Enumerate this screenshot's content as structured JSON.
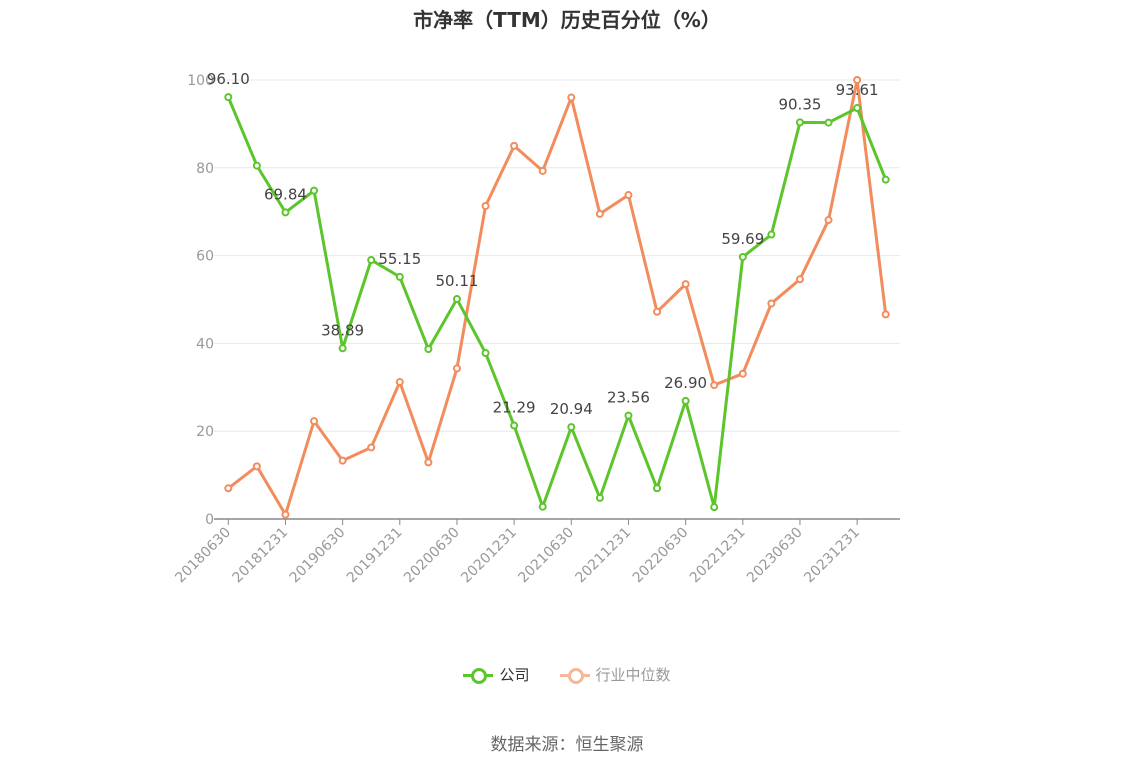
{
  "chart_data": {
    "type": "line",
    "title": "市净率（TTM）历史百分位（%）",
    "x": [
      "20180630",
      "20180930",
      "20181231",
      "20190331",
      "20190630",
      "20190930",
      "20191231",
      "20200331",
      "20200630",
      "20200930",
      "20201231",
      "20210331",
      "20210630",
      "20210930",
      "20211231",
      "20220331",
      "20220630",
      "20220930",
      "20221231",
      "20230331",
      "20230630",
      "20230930",
      "20231231",
      "20240331"
    ],
    "x_tick_labels": [
      "20180630",
      "20181231",
      "20190630",
      "20191231",
      "20200630",
      "20201231",
      "20210630",
      "20211231",
      "20220630",
      "20221231",
      "20230630",
      "20231231"
    ],
    "ylim": [
      0,
      100
    ],
    "y_ticks": [
      "0",
      "20",
      "40",
      "60",
      "80",
      "100"
    ],
    "grid": true,
    "legend_position": "bottom",
    "series": [
      {
        "name": "公司",
        "color": "#5bc52b",
        "values": [
          96.1,
          80.5,
          69.84,
          74.8,
          38.89,
          59.0,
          55.15,
          38.7,
          50.11,
          37.8,
          21.29,
          2.8,
          20.94,
          4.8,
          23.56,
          7.0,
          26.9,
          2.7,
          59.69,
          64.8,
          90.35,
          90.3,
          93.61,
          77.3
        ],
        "data_labels": [
          {
            "index": 0,
            "text": "96.10"
          },
          {
            "index": 2,
            "text": "69.84"
          },
          {
            "index": 4,
            "text": "38.89"
          },
          {
            "index": 6,
            "text": "55.15"
          },
          {
            "index": 8,
            "text": "50.11"
          },
          {
            "index": 10,
            "text": "21.29"
          },
          {
            "index": 12,
            "text": "20.94"
          },
          {
            "index": 14,
            "text": "23.56"
          },
          {
            "index": 16,
            "text": "26.90"
          },
          {
            "index": 18,
            "text": "59.69"
          },
          {
            "index": 20,
            "text": "90.35"
          },
          {
            "index": 22,
            "text": "93.61"
          }
        ]
      },
      {
        "name": "行业中位数",
        "color": "#f28c5c",
        "values": [
          7.0,
          12.0,
          1.0,
          22.3,
          13.3,
          16.3,
          31.2,
          12.9,
          34.3,
          71.3,
          85.0,
          79.3,
          96.0,
          69.5,
          73.8,
          47.2,
          53.5,
          30.5,
          33.1,
          49.1,
          54.6,
          68.1,
          100.0,
          46.6
        ]
      }
    ]
  },
  "legend": {
    "company_label": "公司",
    "industry_label": "行业中位数",
    "company_color": "#5bc52b",
    "industry_color": "#f7b89a"
  },
  "source": "数据来源：恒生聚源"
}
